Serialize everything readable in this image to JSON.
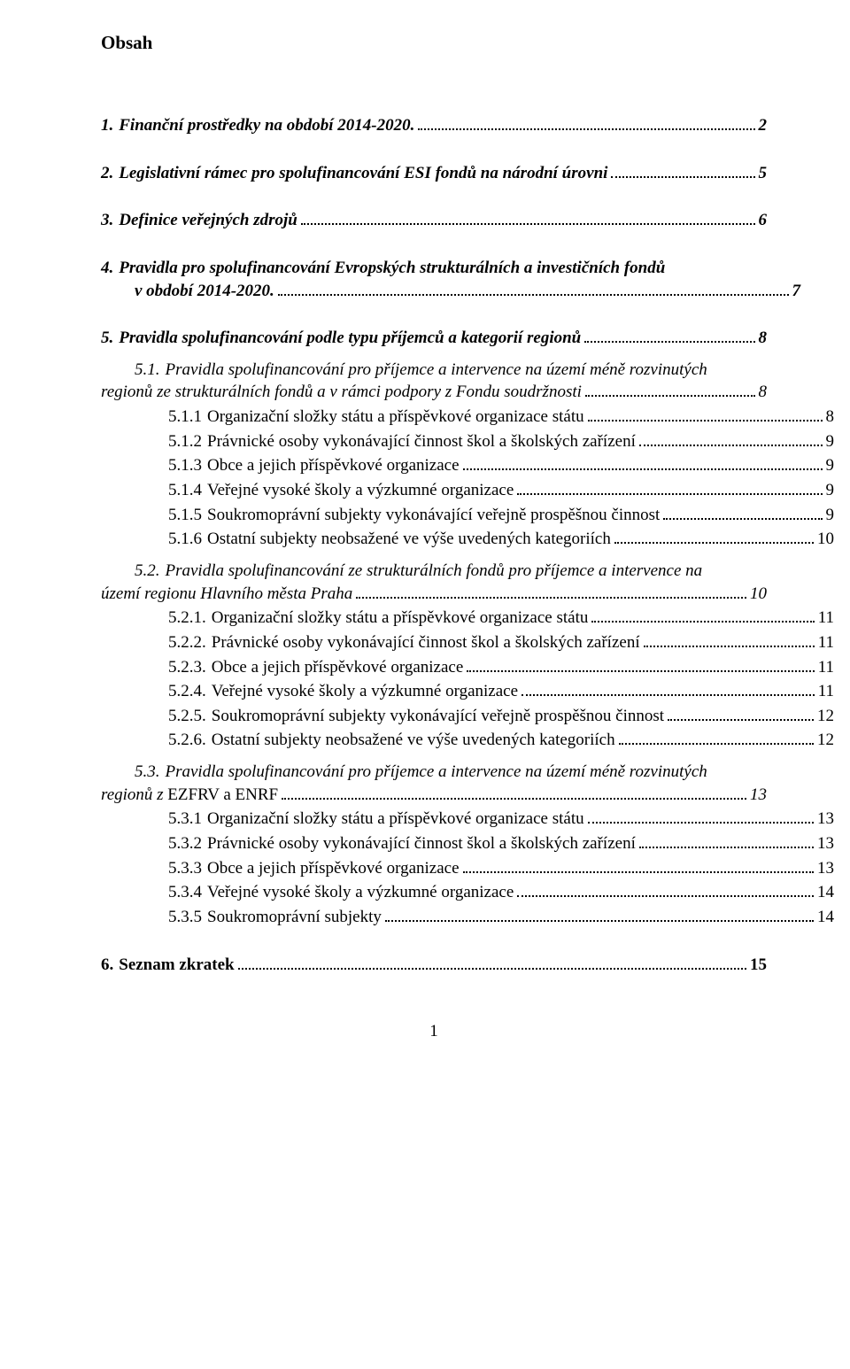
{
  "title": "Obsah",
  "page_number": "1",
  "entries": [
    {
      "num": "1.",
      "label": "Finanční prostředky na období 2014-2020.",
      "page": "2",
      "style": "bi",
      "indent": 0,
      "gap_before": "l"
    },
    {
      "num": "2.",
      "label": "Legislativní rámec pro spolufinancování ESI fondů na národní úrovni",
      "page": "5",
      "style": "bi",
      "indent": 0,
      "gap_before": "l"
    },
    {
      "num": "3.",
      "label": "Definice veřejných zdrojů",
      "page": "6",
      "style": "bi",
      "indent": 0,
      "gap_before": "l"
    },
    {
      "num": "4.",
      "wrap": true,
      "line1": "Pravidla pro spolufinancování Evropských strukturálních a investičních fondů",
      "line2": "v období 2014-2020.",
      "page": "7",
      "style": "bi",
      "indent": 0,
      "gap_before": "l"
    },
    {
      "num": "5.",
      "label": "Pravidla spolufinancování podle typu příjemců a kategorií regionů",
      "page": "8",
      "style": "bi",
      "indent": 0,
      "gap_before": "l"
    },
    {
      "num": "5.1.",
      "wrap": true,
      "line1": "Pravidla spolufinancování pro příjemce a intervence na území méně rozvinutých",
      "line2": "regionů ze strukturálních fondů a v rámci podpory z Fondu soudržnosti",
      "page": "8",
      "style": "i",
      "indent": 1,
      "gap_before": "m"
    },
    {
      "num": "5.1.1",
      "label": "Organizační složky státu a příspěvkové organizace státu",
      "page": "8",
      "style": "",
      "indent": 2,
      "gap_before": "s"
    },
    {
      "num": "5.1.2",
      "label": "Právnické osoby vykonávající činnost škol a školských zařízení",
      "page": "9",
      "style": "",
      "indent": 2,
      "gap_before": "s"
    },
    {
      "num": "5.1.3",
      "label": "Obce a jejich příspěvkové organizace",
      "page": "9",
      "style": "",
      "indent": 2,
      "gap_before": "s"
    },
    {
      "num": "5.1.4",
      "label": "Veřejné vysoké školy a výzkumné organizace",
      "page": "9",
      "style": "",
      "indent": 2,
      "gap_before": "s"
    },
    {
      "num": "5.1.5",
      "label": "Soukromoprávní subjekty vykonávající veřejně prospěšnou činnost",
      "page": "9",
      "style": "",
      "indent": 2,
      "gap_before": "s"
    },
    {
      "num": "5.1.6",
      "label": "Ostatní subjekty neobsažené ve výše uvedených kategoriích",
      "page": "10",
      "style": "",
      "indent": 2,
      "gap_before": "s"
    },
    {
      "num": "5.2.",
      "wrap": true,
      "line1": "Pravidla spolufinancování ze strukturálních fondů pro příjemce a intervence na",
      "line2": "území regionu Hlavního města Praha",
      "page": "10",
      "style": "i",
      "indent": 1,
      "gap_before": "m"
    },
    {
      "num": "5.2.1.",
      "label": "Organizační složky státu a příspěvkové organizace státu",
      "page": "11",
      "style": "",
      "indent": 2,
      "gap_before": "s"
    },
    {
      "num": "5.2.2.",
      "label": "Právnické osoby vykonávající činnost škol a školských zařízení",
      "page": "11",
      "style": "",
      "indent": 2,
      "gap_before": "s"
    },
    {
      "num": "5.2.3.",
      "label": "Obce a jejich příspěvkové organizace",
      "page": "11",
      "style": "",
      "indent": 2,
      "gap_before": "s"
    },
    {
      "num": "5.2.4.",
      "label": "Veřejné vysoké školy a výzkumné organizace",
      "page": "11",
      "style": "",
      "indent": 2,
      "gap_before": "s"
    },
    {
      "num": "5.2.5.",
      "label": "Soukromoprávní subjekty vykonávající veřejně prospěšnou činnost",
      "page": "12",
      "style": "",
      "indent": 2,
      "gap_before": "s"
    },
    {
      "num": "5.2.6.",
      "label": "Ostatní subjekty neobsažené ve výše uvedených kategoriích",
      "page": "12",
      "style": "",
      "indent": 2,
      "gap_before": "s"
    },
    {
      "num": "5.3.",
      "wrap": true,
      "line1": "Pravidla spolufinancování pro příjemce a intervence na území méně rozvinutých",
      "line2_prefix": "regionů z ",
      "line2_plain": "EZFRV a ENRF",
      "page": "13",
      "style": "i",
      "indent": 1,
      "gap_before": "m"
    },
    {
      "num": "5.3.1",
      "label": "Organizační složky státu a příspěvkové organizace státu",
      "page": "13",
      "style": "",
      "indent": 2,
      "gap_before": "s"
    },
    {
      "num": "5.3.2",
      "label": "Právnické osoby vykonávající činnost škol a školských zařízení",
      "page": "13",
      "style": "",
      "indent": 2,
      "gap_before": "s"
    },
    {
      "num": "5.3.3",
      "label": "Obce a jejich příspěvkové organizace",
      "page": "13",
      "style": "",
      "indent": 2,
      "gap_before": "s"
    },
    {
      "num": "5.3.4",
      "label": "Veřejné vysoké školy a výzkumné organizace",
      "page": "14",
      "style": "",
      "indent": 2,
      "gap_before": "s"
    },
    {
      "num": "5.3.5",
      "label": "Soukromoprávní subjekty",
      "page": "14",
      "style": "",
      "indent": 2,
      "gap_before": "s"
    },
    {
      "num": "6.",
      "label": "Seznam zkratek",
      "page": "15",
      "style": "b",
      "indent": 0,
      "gap_before": "l"
    }
  ]
}
